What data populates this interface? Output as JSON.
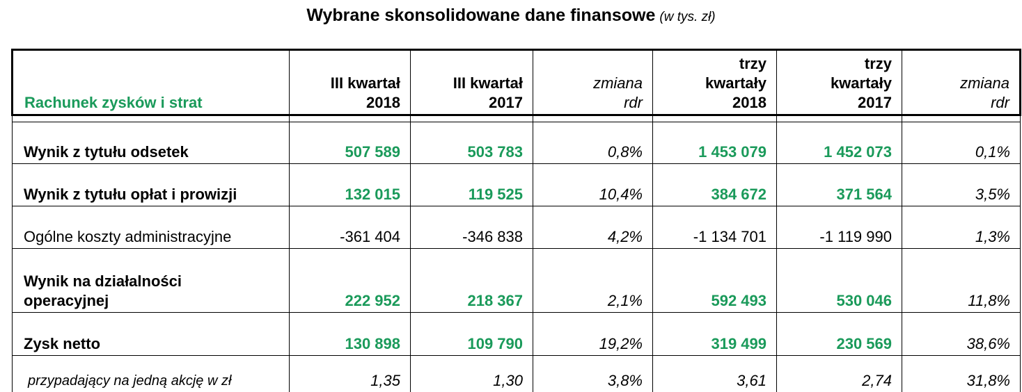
{
  "title": "Wybrane skonsolidowane dane finansowe",
  "title_unit": "(w tys. zł)",
  "table": {
    "columns": [
      {
        "line1": "",
        "line2": "",
        "line3": "Rachunek zysków i strat"
      },
      {
        "line1": "",
        "line2": "III kwartał",
        "line3": "2018"
      },
      {
        "line1": "",
        "line2": "III kwartał",
        "line3": "2017"
      },
      {
        "line1": "",
        "line2": "zmiana",
        "line3": "rdr"
      },
      {
        "line1": "trzy",
        "line2": "kwartały",
        "line3": "2018"
      },
      {
        "line1": "trzy",
        "line2": "kwartały",
        "line3": "2017"
      },
      {
        "line1": "",
        "line2": "zmiana",
        "line3": "rdr"
      }
    ],
    "rows": [
      {
        "label_line1": "",
        "label_line2": "Wynik z tytułu odsetek",
        "q3_2018": "507 589",
        "q3_2017": "503 783",
        "change_q": "0,8%",
        "m9_2018": "1 453 079",
        "m9_2017": "1 452 073",
        "change_m9": "0,1%"
      },
      {
        "label_line1": "",
        "label_line2": "Wynik z tytułu opłat i prowizji",
        "q3_2018": "132 015",
        "q3_2017": "119 525",
        "change_q": "10,4%",
        "m9_2018": "384 672",
        "m9_2017": "371 564",
        "change_m9": "3,5%"
      },
      {
        "label_line1": "",
        "label_line2": "Ogólne koszty administracyjne",
        "q3_2018": "-361 404",
        "q3_2017": "-346 838",
        "change_q": "4,2%",
        "m9_2018": "-1 134 701",
        "m9_2017": "-1 119 990",
        "change_m9": "1,3%"
      },
      {
        "label_line1": "Wynik na działalności",
        "label_line2": "operacyjnej",
        "q3_2018": "222 952",
        "q3_2017": "218 367",
        "change_q": "2,1%",
        "m9_2018": "592 493",
        "m9_2017": "530 046",
        "change_m9": "11,8%"
      },
      {
        "label_line1": "",
        "label_line2": "Zysk netto",
        "q3_2018": "130 898",
        "q3_2017": "109 790",
        "change_q": "19,2%",
        "m9_2018": "319 499",
        "m9_2017": "230 569",
        "change_m9": "38,6%"
      },
      {
        "label_line1": "",
        "label_line2": "przypadający na jedną akcję w zł",
        "q3_2018": "1,35",
        "q3_2017": "1,30",
        "change_q": "3,8%",
        "m9_2018": "3,61",
        "m9_2017": "2,74",
        "change_m9": "31,8%"
      }
    ]
  },
  "colors": {
    "accent_green": "#1a9a5a",
    "text": "#000000"
  }
}
